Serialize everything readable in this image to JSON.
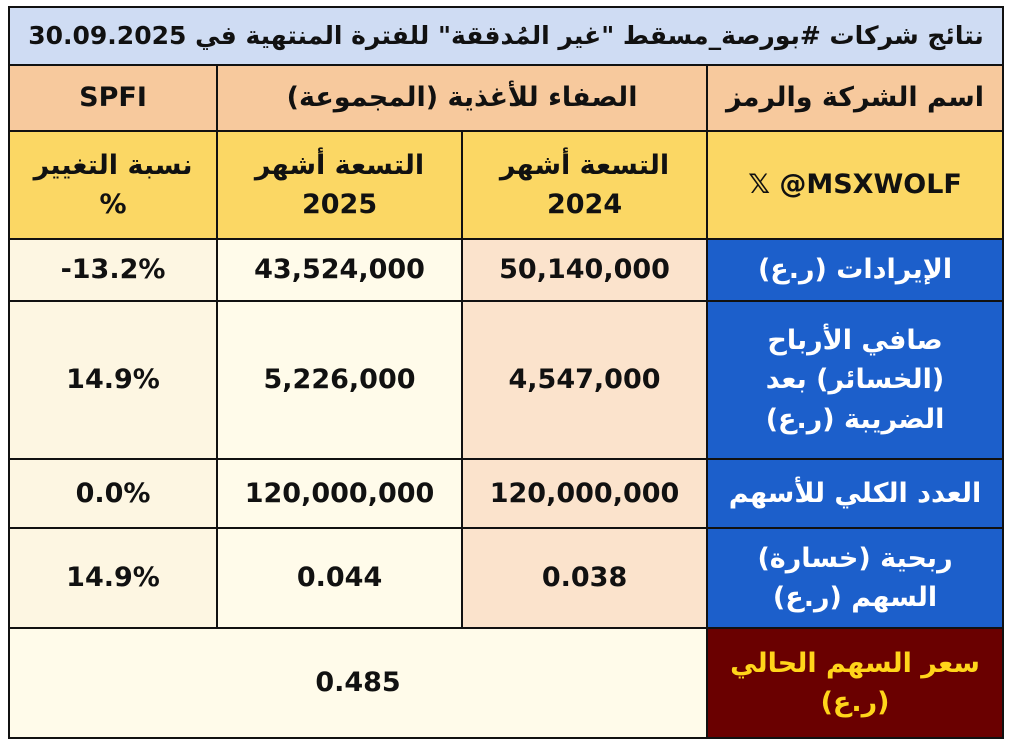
{
  "title": "نتائج شركات #بورصة_مسقط \"غير المُدققة\" للفترة المنتهية في 30.09.2025",
  "header": {
    "label": "اسم الشركة والرمز",
    "company": "الصفاء للأغذية (المجموعة)",
    "symbol": "SPFI"
  },
  "subheader": {
    "handle": "𝕏 @MSXWOLF",
    "col_2024": [
      "التسعة أشهر",
      "2024"
    ],
    "col_2025": [
      "التسعة أشهر",
      "2025"
    ],
    "change": [
      "نسبة التغيير",
      "%"
    ]
  },
  "rows": [
    {
      "label": [
        "الإيرادات (ر.ع)"
      ],
      "values": [
        "50,140,000",
        "43,524,000",
        "-13.2%"
      ]
    },
    {
      "label": [
        "صافي الأرباح",
        "(الخسائر) بعد",
        "الضريبة (ر.ع)"
      ],
      "values": [
        "4,547,000",
        "5,226,000",
        "14.9%"
      ]
    },
    {
      "label": [
        "العدد الكلي للأسهم"
      ],
      "values": [
        "120,000,000",
        "120,000,000",
        "0.0%"
      ]
    },
    {
      "label": [
        "ربحية (خسارة)",
        "السهم (ر.ع)"
      ],
      "values": [
        "0.038",
        "0.044",
        "14.9%"
      ]
    }
  ],
  "price": {
    "label": [
      "سعر السهم الحالي",
      "(ر.ع)"
    ],
    "value": "0.485"
  }
}
